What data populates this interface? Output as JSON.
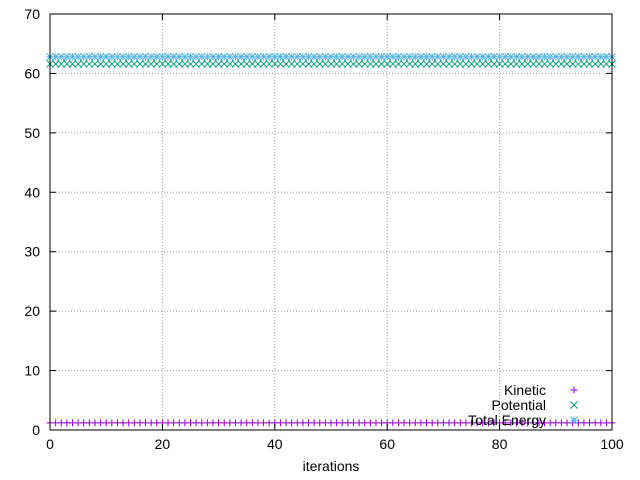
{
  "chart_data": {
    "type": "scatter",
    "title": "",
    "xlabel": "iterations",
    "ylabel": "",
    "xlim": [
      0,
      100
    ],
    "ylim": [
      0,
      70
    ],
    "xticks": [
      0,
      20,
      40,
      60,
      80,
      100
    ],
    "yticks": [
      0,
      10,
      20,
      30,
      40,
      50,
      60,
      70
    ],
    "grid": true,
    "legend_position": "bottom-right",
    "series": [
      {
        "name": "Kinetic",
        "marker": "plus",
        "color": "#9400d3",
        "x_start": 0,
        "x_end": 100,
        "x_step": 1,
        "y": 1.2
      },
      {
        "name": "Potential",
        "marker": "cross",
        "color": "#009e73",
        "x_start": 0,
        "x_end": 100,
        "x_step": 1,
        "y": 61.6
      },
      {
        "name": "Total Energy",
        "marker": "star",
        "color": "#56b4e9",
        "x_start": 0,
        "x_end": 100,
        "x_step": 1,
        "y": 62.8
      }
    ]
  }
}
